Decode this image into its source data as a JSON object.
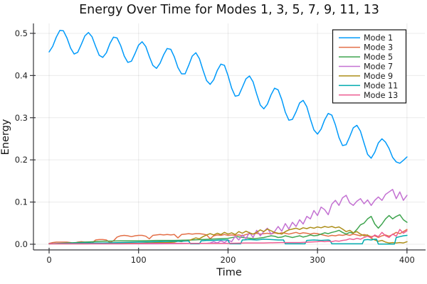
{
  "chart_data": {
    "type": "line",
    "title": "Energy Over Time for Modes 1, 3, 5, 7, 9, 11, 13",
    "xlabel": "Time",
    "ylabel": "Energy",
    "xlim": [
      -17.5,
      420
    ],
    "ylim": [
      -0.0135,
      0.5235
    ],
    "xticks": [
      0,
      100,
      200,
      300,
      400
    ],
    "xtick_labels": [
      "0",
      "100",
      "200",
      "300",
      "400"
    ],
    "yticks": [
      0.0,
      0.1,
      0.2,
      0.3,
      0.4,
      0.5
    ],
    "ytick_labels": [
      "0.0",
      "0.1",
      "0.2",
      "0.3",
      "0.4",
      "0.5"
    ],
    "grid": true,
    "grid_color": "rgba(0,0,0,0.08)",
    "axis_color": "#36363a",
    "tick_label_color": "#1f1f1f",
    "background": "#ffffff",
    "legend": {
      "position": "top-right",
      "border_color": "#111111",
      "fill": "#ffffff"
    },
    "series": [
      {
        "name": "Mode 1",
        "color": "#009AFA",
        "x_start": 0,
        "x_step": 4,
        "y": [
          0.456,
          0.469,
          0.491,
          0.507,
          0.506,
          0.489,
          0.465,
          0.451,
          0.455,
          0.474,
          0.494,
          0.502,
          0.492,
          0.469,
          0.448,
          0.443,
          0.454,
          0.476,
          0.491,
          0.489,
          0.471,
          0.446,
          0.431,
          0.434,
          0.452,
          0.472,
          0.48,
          0.469,
          0.445,
          0.424,
          0.417,
          0.429,
          0.449,
          0.464,
          0.462,
          0.444,
          0.419,
          0.404,
          0.404,
          0.424,
          0.446,
          0.454,
          0.44,
          0.413,
          0.388,
          0.379,
          0.39,
          0.412,
          0.427,
          0.424,
          0.4,
          0.37,
          0.351,
          0.353,
          0.372,
          0.392,
          0.399,
          0.385,
          0.356,
          0.33,
          0.321,
          0.332,
          0.354,
          0.37,
          0.366,
          0.343,
          0.313,
          0.294,
          0.296,
          0.314,
          0.335,
          0.341,
          0.326,
          0.297,
          0.271,
          0.261,
          0.273,
          0.295,
          0.31,
          0.306,
          0.283,
          0.253,
          0.234,
          0.236,
          0.255,
          0.276,
          0.282,
          0.268,
          0.24,
          0.213,
          0.204,
          0.218,
          0.24,
          0.25,
          0.242,
          0.227,
          0.206,
          0.195,
          0.192,
          0.199,
          0.207
        ]
      },
      {
        "name": "Mode 3",
        "color": "#E36F47",
        "x_start": 0,
        "x_step": 4,
        "y": [
          0.002,
          0.004,
          0.005,
          0.005,
          0.005,
          0.005,
          0.004,
          0.002,
          0.005,
          0.006,
          0.005,
          0.005,
          0.003,
          0.01,
          0.011,
          0.011,
          0.01,
          0.004,
          0.008,
          0.017,
          0.02,
          0.021,
          0.02,
          0.018,
          0.02,
          0.021,
          0.021,
          0.019,
          0.013,
          0.021,
          0.022,
          0.023,
          0.022,
          0.023,
          0.022,
          0.023,
          0.015,
          0.023,
          0.024,
          0.025,
          0.024,
          0.025,
          0.025,
          0.024,
          0.022,
          0.013,
          0.02,
          0.022,
          0.021,
          0.023,
          0.021,
          0.022,
          0.021,
          0.022,
          0.02,
          0.023,
          0.025,
          0.024,
          0.026,
          0.024,
          0.025,
          0.026,
          0.024,
          0.027,
          0.025,
          0.027,
          0.026,
          0.024,
          0.026,
          0.028,
          0.025,
          0.027,
          0.026,
          0.024,
          0.026,
          0.025,
          0.023,
          0.021,
          0.019,
          0.021,
          0.02,
          0.022,
          0.021,
          0.023,
          0.021,
          0.024,
          0.022,
          0.02,
          0.023,
          0.021,
          0.018,
          0.02,
          0.016,
          0.02,
          0.022,
          0.019,
          0.023,
          0.028,
          0.025,
          0.03,
          0.035
        ]
      },
      {
        "name": "Mode 5",
        "color": "#3EA44E",
        "x": [
          0,
          20,
          40,
          60,
          80,
          100,
          120,
          140,
          160,
          180,
          200,
          210,
          220,
          230,
          240,
          244,
          248,
          252,
          256,
          260,
          264,
          268,
          272,
          276,
          280,
          284,
          288,
          292,
          296,
          300,
          304,
          308,
          312,
          316,
          320,
          324,
          328,
          332,
          336,
          340,
          344,
          348,
          352,
          356,
          360,
          364,
          368,
          372,
          376,
          380,
          384,
          388,
          392,
          396,
          400
        ],
        "y": [
          0.001,
          0.003,
          0.005,
          0.007,
          0.008,
          0.008,
          0.009,
          0.009,
          0.01,
          0.012,
          0.014,
          0.018,
          0.015,
          0.013,
          0.016,
          0.018,
          0.02,
          0.019,
          0.016,
          0.017,
          0.02,
          0.018,
          0.016,
          0.018,
          0.02,
          0.017,
          0.019,
          0.022,
          0.02,
          0.021,
          0.024,
          0.027,
          0.025,
          0.028,
          0.03,
          0.033,
          0.028,
          0.024,
          0.028,
          0.026,
          0.035,
          0.046,
          0.05,
          0.06,
          0.066,
          0.048,
          0.038,
          0.048,
          0.06,
          0.068,
          0.06,
          0.066,
          0.07,
          0.058,
          0.052
        ]
      },
      {
        "name": "Mode 7",
        "color": "#C371D2",
        "x": [
          0,
          40,
          80,
          120,
          160,
          176,
          180,
          184,
          188,
          192,
          196,
          200,
          204,
          208,
          212,
          216,
          220,
          224,
          228,
          232,
          236,
          240,
          244,
          248,
          252,
          256,
          260,
          264,
          268,
          272,
          276,
          280,
          284,
          288,
          292,
          296,
          300,
          304,
          308,
          312,
          316,
          320,
          324,
          328,
          332,
          336,
          340,
          344,
          348,
          352,
          356,
          360,
          364,
          368,
          372,
          376,
          380,
          384,
          388,
          392,
          396,
          400
        ],
        "y": [
          0.001,
          0.001,
          0.001,
          0.001,
          0.002,
          0.002,
          0.003,
          0.006,
          0.003,
          0.008,
          0.004,
          0.01,
          0.006,
          0.019,
          0.01,
          0.022,
          0.013,
          0.028,
          0.016,
          0.033,
          0.02,
          0.03,
          0.038,
          0.024,
          0.03,
          0.042,
          0.031,
          0.049,
          0.036,
          0.052,
          0.042,
          0.058,
          0.048,
          0.066,
          0.06,
          0.08,
          0.068,
          0.088,
          0.082,
          0.07,
          0.095,
          0.104,
          0.092,
          0.11,
          0.116,
          0.098,
          0.092,
          0.102,
          0.108,
          0.096,
          0.105,
          0.092,
          0.104,
          0.112,
          0.104,
          0.118,
          0.124,
          0.13,
          0.108,
          0.124,
          0.104,
          0.116
        ]
      },
      {
        "name": "Mode 9",
        "color": "#AC8E18",
        "x": [
          0,
          20,
          40,
          60,
          80,
          100,
          110,
          120,
          130,
          140,
          144,
          148,
          152,
          156,
          160,
          164,
          168,
          172,
          176,
          180,
          184,
          188,
          192,
          196,
          200,
          204,
          208,
          212,
          216,
          220,
          224,
          228,
          232,
          236,
          240,
          244,
          248,
          252,
          256,
          260,
          264,
          268,
          272,
          276,
          280,
          284,
          288,
          292,
          296,
          300,
          304,
          308,
          312,
          316,
          320,
          324,
          328,
          332,
          336,
          340,
          344,
          348,
          352,
          356,
          360,
          364,
          368,
          372,
          376,
          380,
          384,
          388,
          392,
          396,
          400
        ],
        "y": [
          0.001,
          0.001,
          0.001,
          0.002,
          0.002,
          0.002,
          0.003,
          0.004,
          0.004,
          0.005,
          0.007,
          0.006,
          0.009,
          0.008,
          0.012,
          0.015,
          0.013,
          0.018,
          0.022,
          0.025,
          0.022,
          0.026,
          0.023,
          0.028,
          0.024,
          0.027,
          0.023,
          0.03,
          0.026,
          0.031,
          0.027,
          0.024,
          0.028,
          0.034,
          0.03,
          0.036,
          0.032,
          0.028,
          0.026,
          0.024,
          0.03,
          0.034,
          0.036,
          0.038,
          0.035,
          0.039,
          0.037,
          0.04,
          0.038,
          0.041,
          0.039,
          0.042,
          0.04,
          0.042,
          0.039,
          0.041,
          0.036,
          0.03,
          0.033,
          0.027,
          0.03,
          0.024,
          0.02,
          0.022,
          0.014,
          0.01,
          0.007,
          0.009,
          0.005,
          0.003,
          0.004,
          0.003,
          0.004,
          0.003,
          0.006
        ]
      },
      {
        "name": "Mode 11",
        "color": "#00AAAE",
        "x": [
          0,
          20,
          40,
          60,
          80,
          100,
          120,
          140,
          148,
          156,
          158,
          168,
          170,
          176,
          184,
          192,
          200,
          202,
          214,
          216,
          224,
          232,
          240,
          248,
          256,
          262,
          264,
          286,
          288,
          296,
          304,
          312,
          314,
          316,
          350,
          352,
          356,
          360,
          364,
          366,
          368,
          386,
          388,
          392,
          396,
          400
        ],
        "y": [
          0.001,
          0.002,
          0.003,
          0.003,
          0.004,
          0.005,
          0.006,
          0.007,
          0.007,
          0.008,
          0.001,
          0.001,
          0.008,
          0.009,
          0.009,
          0.01,
          0.01,
          0.001,
          0.001,
          0.01,
          0.011,
          0.01,
          0.012,
          0.011,
          0.01,
          0.01,
          0.001,
          0.001,
          0.009,
          0.01,
          0.009,
          0.01,
          0.009,
          0.001,
          0.001,
          0.01,
          0.011,
          0.01,
          0.012,
          0.012,
          0.0005,
          0.0005,
          0.016,
          0.018,
          0.02,
          0.021
        ]
      },
      {
        "name": "Mode 13",
        "color": "#ED5E93",
        "x": [
          0,
          40,
          80,
          120,
          160,
          200,
          220,
          240,
          260,
          280,
          300,
          304,
          308,
          312,
          316,
          320,
          324,
          328,
          332,
          336,
          340,
          344,
          348,
          352,
          356,
          360,
          364,
          368,
          372,
          376,
          380,
          384,
          388,
          392,
          396,
          400
        ],
        "y": [
          0.001,
          0.001,
          0.001,
          0.002,
          0.002,
          0.002,
          0.003,
          0.003,
          0.004,
          0.004,
          0.006,
          0.007,
          0.006,
          0.007,
          0.006,
          0.008,
          0.007,
          0.009,
          0.01,
          0.013,
          0.011,
          0.014,
          0.012,
          0.016,
          0.019,
          0.015,
          0.022,
          0.018,
          0.028,
          0.02,
          0.016,
          0.024,
          0.019,
          0.035,
          0.026,
          0.032
        ]
      }
    ]
  }
}
